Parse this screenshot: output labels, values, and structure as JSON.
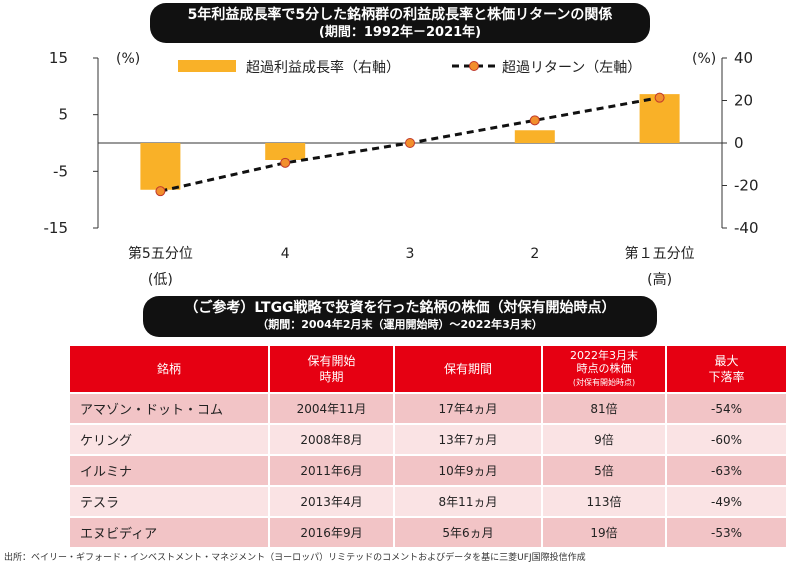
{
  "title": {
    "line1": "5年利益成長率で5分した銘柄群の利益成長率と株価リターンの関係",
    "line2": "(期間：1992年－2021年)"
  },
  "chart_data": {
    "type": "bar+line",
    "categories": [
      "第5五分位",
      "4",
      "3",
      "2",
      "第１五分位"
    ],
    "category_sublabels": [
      "(低)",
      "",
      "",
      "",
      "(高)"
    ],
    "left_axis": {
      "unit": "(%)",
      "ylim": [
        -15,
        15
      ],
      "ticks": [
        15,
        5,
        -5,
        -15
      ]
    },
    "right_axis": {
      "unit": "(%)",
      "ylim": [
        -40,
        40
      ],
      "ticks": [
        40,
        20,
        0,
        -20,
        -40
      ]
    },
    "series": [
      {
        "name": "超過利益成長率（右軸）",
        "type": "bar",
        "axis": "right",
        "color": "#f9b128",
        "values": [
          -22,
          -8,
          0,
          6,
          23
        ]
      },
      {
        "name": "超過リターン（左軸）",
        "type": "line",
        "axis": "left",
        "color": "#111111",
        "marker_color": "#f28f2c",
        "values": [
          -8.5,
          -3.5,
          0,
          4,
          8
        ]
      }
    ]
  },
  "table": {
    "title_line1": "（ご参考）LTGG戦略で投資を行った銘柄の株価（対保有開始時点）",
    "title_line2": "（期間：2004年2月末（運用開始時）～2022年3月末）",
    "headers": {
      "name": "銘柄",
      "start_l1": "保有開始",
      "start_l2": "時期",
      "period": "保有期間",
      "price_l1": "2022年3月末",
      "price_l2": "時点の株価",
      "price_l3": "(対保有開始時点)",
      "dd_l1": "最大",
      "dd_l2": "下落率"
    },
    "rows": [
      {
        "name": "アマゾン・ドット・コム",
        "start": "2004年11月",
        "period": "17年4ヵ月",
        "price": "81倍",
        "drawdown": "-54%"
      },
      {
        "name": "ケリング",
        "start": "2008年8月",
        "period": "13年7ヵ月",
        "price": "9倍",
        "drawdown": "-60%"
      },
      {
        "name": "イルミナ",
        "start": "2011年6月",
        "period": "10年9ヵ月",
        "price": "5倍",
        "drawdown": "-63%"
      },
      {
        "name": "テスラ",
        "start": "2013年4月",
        "period": "8年11ヵ月",
        "price": "113倍",
        "drawdown": "-49%"
      },
      {
        "name": "エヌビディア",
        "start": "2016年9月",
        "period": "5年6ヵ月",
        "price": "19倍",
        "drawdown": "-53%"
      }
    ]
  },
  "source": "出所：ベイリー・ギフォード・インベストメント・マネジメント（ヨーロッパ）リミテッドのコメントおよびデータを基に三菱UFJ国際投信作成"
}
